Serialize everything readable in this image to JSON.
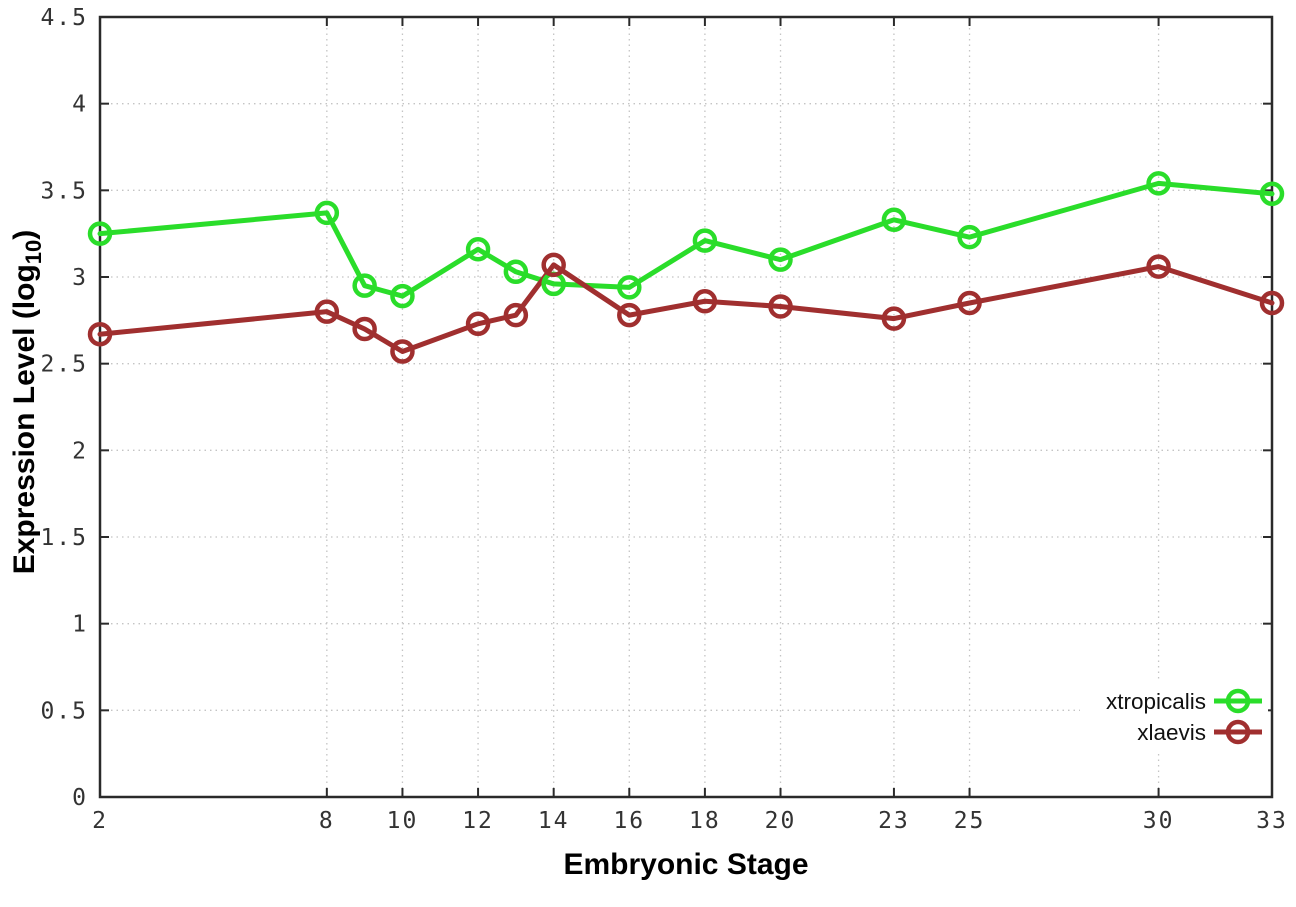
{
  "labels": {
    "ylabel_main": "Expression Level (log",
    "ylabel_sub": "10",
    "ylabel_close": ")"
  },
  "chart_data": {
    "type": "line",
    "title": "",
    "xlabel": "Embryonic Stage",
    "ylabel": "Expression Level (log10)",
    "xlim": [
      2,
      33
    ],
    "ylim": [
      0,
      4.5
    ],
    "grid": true,
    "grid_style": "dotted",
    "legend_position": "bottom-right",
    "x": [
      2,
      8,
      9,
      10,
      12,
      13,
      14,
      16,
      18,
      20,
      23,
      25,
      30,
      33
    ],
    "x_tick_values": [
      2,
      8,
      10,
      12,
      14,
      16,
      18,
      20,
      23,
      25,
      30,
      33
    ],
    "x_tick_labels": [
      "2",
      "8",
      "10",
      "12",
      "14",
      "16",
      "18",
      "20",
      "23",
      "25",
      "30",
      "33"
    ],
    "y_tick_values": [
      0,
      0.5,
      1,
      1.5,
      2,
      2.5,
      3,
      3.5,
      4,
      4.5
    ],
    "y_tick_labels": [
      "0",
      "0.5",
      "1",
      "1.5",
      "2",
      "2.5",
      "3",
      "3.5",
      "4",
      "4.5"
    ],
    "series": [
      {
        "name": "xtropicalis",
        "color": "#2ADD2A",
        "values": [
          3.25,
          3.37,
          2.95,
          2.89,
          3.16,
          3.03,
          2.96,
          2.94,
          3.21,
          3.1,
          3.33,
          3.23,
          3.54,
          3.48
        ]
      },
      {
        "name": "xlaevis",
        "color": "#A02F2F",
        "values": [
          2.67,
          2.8,
          2.7,
          2.57,
          2.73,
          2.78,
          3.07,
          2.78,
          2.86,
          2.83,
          2.76,
          2.85,
          3.06,
          2.85
        ]
      }
    ],
    "style": {
      "border_color": "#2a2a2a",
      "grid_color": "#c4c4c4",
      "tick_text_color": "#333333",
      "legend_text_color": "#111111",
      "background": "#ffffff"
    }
  }
}
